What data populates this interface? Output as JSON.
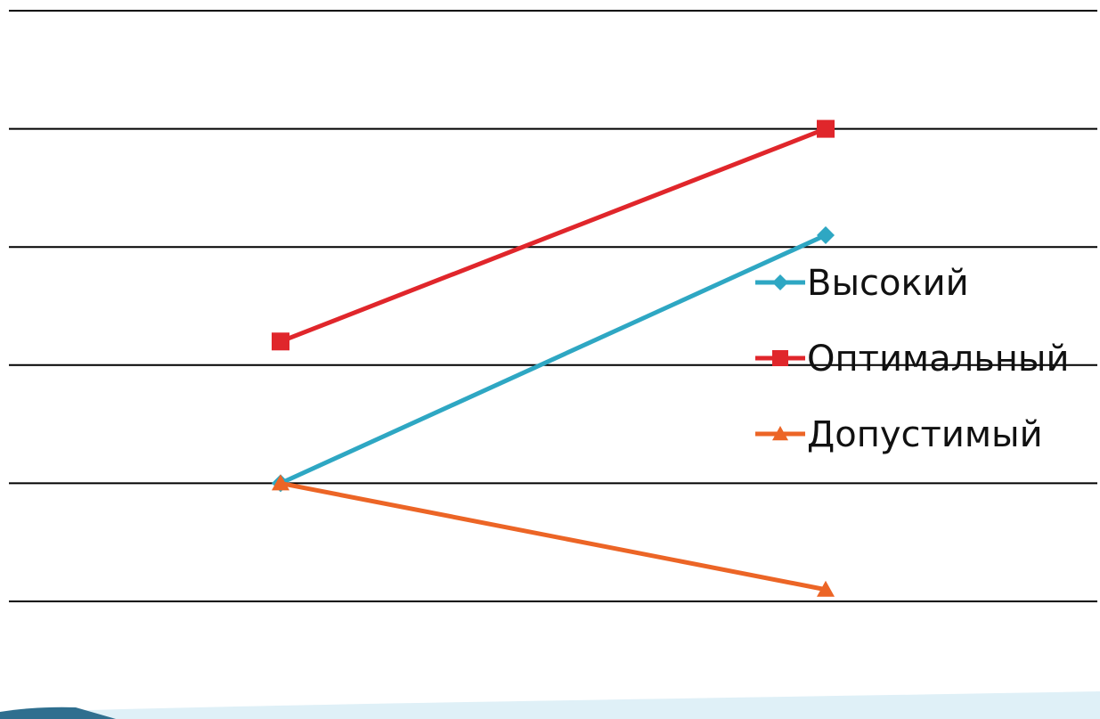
{
  "chart_data": {
    "type": "line",
    "title": "",
    "xlabel": "",
    "ylabel": "",
    "categories": [
      "",
      ""
    ],
    "ylim": [
      0,
      5
    ],
    "grid": true,
    "legend_position": "right",
    "series": [
      {
        "name": "Высокий",
        "values": [
          1.0,
          3.1
        ],
        "color": "#2ea7c3",
        "marker": "diamond"
      },
      {
        "name": "Оптимальный",
        "values": [
          2.2,
          4.0
        ],
        "color": "#e0262b",
        "marker": "square"
      },
      {
        "name": "Допустимый",
        "values": [
          1.0,
          0.1
        ],
        "color": "#ec6526",
        "marker": "triangle"
      }
    ]
  },
  "footer": {
    "band_color": "#dff0f7",
    "accent_color": "#2f6f8f"
  }
}
